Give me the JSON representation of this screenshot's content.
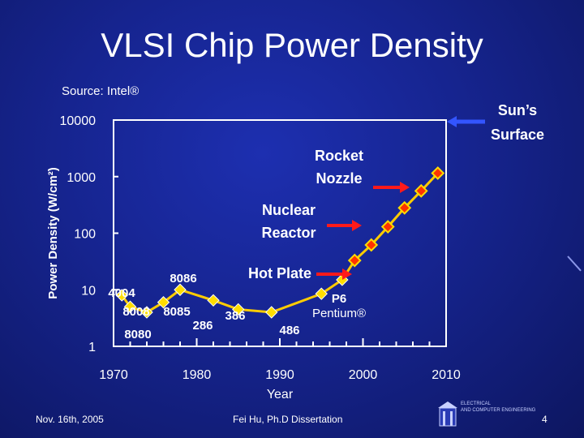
{
  "slide": {
    "title": "VLSI Chip Power Density",
    "source": "Source: Intel®",
    "footer_left": "Nov. 16th, 2005",
    "footer_center": "Fei Hu, Ph.D Dissertation",
    "page_number": "4",
    "logo_lines": [
      "ELECTRICAL",
      "AND COMPUTER ENGINEERING"
    ]
  },
  "chart_data": {
    "type": "line",
    "xlabel": "Year",
    "ylabel": "Power Density (W/cm²)",
    "xlim": [
      1970,
      2010
    ],
    "ylim": [
      1,
      10000
    ],
    "yscale": "log",
    "x_ticks": [
      1970,
      1980,
      1990,
      2000,
      2010
    ],
    "y_ticks": [
      1,
      10,
      100,
      1000,
      10000
    ],
    "grid": false,
    "points": [
      {
        "label": "4004",
        "x": 1971,
        "y": 8
      },
      {
        "label": "8008",
        "x": 1972,
        "y": 5
      },
      {
        "label": "8080",
        "x": 1974,
        "y": 4
      },
      {
        "label": "8085",
        "x": 1976,
        "y": 6
      },
      {
        "label": "8086",
        "x": 1978,
        "y": 10
      },
      {
        "label": "286",
        "x": 1982,
        "y": 6.5
      },
      {
        "label": "386",
        "x": 1985,
        "y": 4.5
      },
      {
        "label": "486",
        "x": 1989,
        "y": 4
      },
      {
        "label": "P6 Pentium®",
        "x": 1995,
        "y": 8.5
      },
      {
        "label": "",
        "x": 1997.5,
        "y": 15
      },
      {
        "label": "",
        "x": 1999,
        "y": 33
      },
      {
        "label": "",
        "x": 2001,
        "y": 62
      },
      {
        "label": "",
        "x": 2003,
        "y": 130
      },
      {
        "label": "",
        "x": 2005,
        "y": 280
      },
      {
        "label": "",
        "x": 2007,
        "y": 560
      },
      {
        "label": "",
        "x": 2009,
        "y": 1150
      }
    ],
    "reference_levels": [
      {
        "label": "Hot Plate",
        "y": 10
      },
      {
        "label": "Nuclear Reactor",
        "y": 100
      },
      {
        "label": "Rocket Nozzle",
        "y": 1000
      },
      {
        "label": "Sun’s Surface",
        "y": 10000
      }
    ],
    "colors": {
      "line": "#ffcc00",
      "marker_early": "#ffdd00",
      "marker_late": "#ff3300",
      "arrow_red": "#ff1a1a",
      "arrow_blue": "#3355ff",
      "text": "#ffffff"
    }
  }
}
